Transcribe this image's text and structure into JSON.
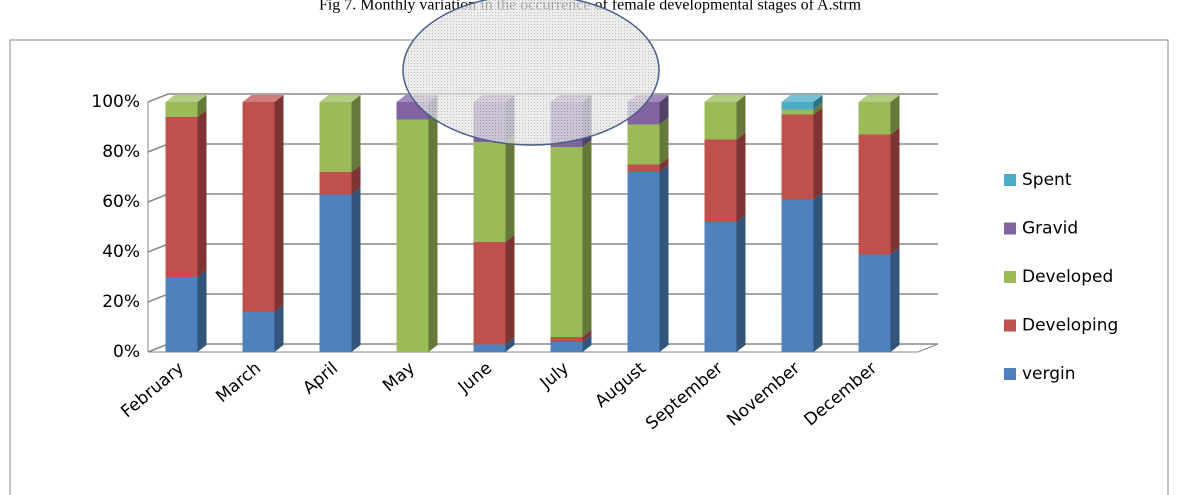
{
  "chart_data": {
    "type": "bar3d_stacked",
    "title": "Fig 7. Monthly variation in the occurrence of female developmental stages of A.strm",
    "categories": [
      "February",
      "March",
      "April",
      "May",
      "June",
      "July",
      "August",
      "September",
      "November",
      "December"
    ],
    "series": [
      {
        "name": "vergin",
        "color": "#4f81bd",
        "values": [
          30,
          16,
          63,
          0,
          3,
          4,
          72,
          52,
          61,
          39
        ]
      },
      {
        "name": "Developing",
        "color": "#c0504d",
        "values": [
          64,
          84,
          9,
          0,
          41,
          2,
          3,
          33,
          34,
          48
        ]
      },
      {
        "name": "Developed",
        "color": "#9bbb59",
        "values": [
          6,
          0,
          28,
          93,
          40,
          76,
          16,
          15,
          2,
          13
        ]
      },
      {
        "name": "Gravid",
        "color": "#8064a2",
        "values": [
          0,
          0,
          0,
          7,
          16,
          18,
          9,
          0,
          0,
          0
        ]
      },
      {
        "name": "Spent",
        "color": "#4bacc6",
        "values": [
          0,
          0,
          0,
          0,
          0,
          0,
          0,
          0,
          3,
          0
        ]
      }
    ],
    "ylim": [
      0,
      100
    ],
    "yticks": [
      {
        "value": 0,
        "label": "0%"
      },
      {
        "value": 20,
        "label": "20%"
      },
      {
        "value": 40,
        "label": "40%"
      },
      {
        "value": 60,
        "label": "60%"
      },
      {
        "value": 80,
        "label": "80%"
      },
      {
        "value": 100,
        "label": "100%"
      }
    ],
    "grid": true,
    "legend": "right"
  }
}
